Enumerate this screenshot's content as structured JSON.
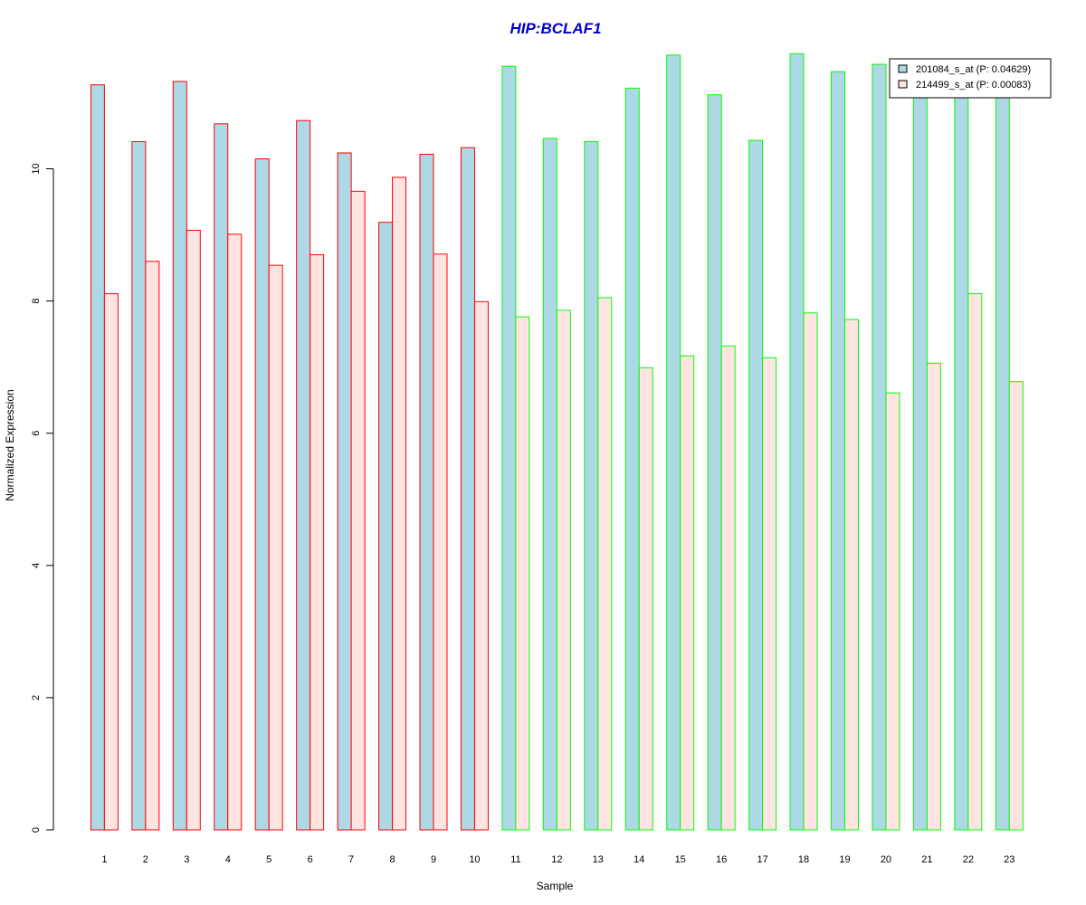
{
  "chart_data": {
    "type": "bar",
    "title": "HIP:BCLAF1",
    "xlabel": "Sample",
    "ylabel": "Normalized Expression",
    "ylim": [
      0,
      12
    ],
    "yticks": [
      "0",
      "2",
      "4",
      "6",
      "8",
      "10"
    ],
    "categories": [
      "1",
      "2",
      "3",
      "4",
      "5",
      "6",
      "7",
      "8",
      "9",
      "10",
      "11",
      "12",
      "13",
      "14",
      "15",
      "16",
      "17",
      "18",
      "19",
      "20",
      "21",
      "22",
      "23"
    ],
    "series": [
      {
        "name": "201084_s_at (P: 0.04629)",
        "fill": "#add8e6",
        "values": [
          11.27,
          10.41,
          11.32,
          10.68,
          10.15,
          10.73,
          10.24,
          9.19,
          10.22,
          10.32,
          11.55,
          10.46,
          10.41,
          11.22,
          11.72,
          11.12,
          10.43,
          11.74,
          11.47,
          11.58,
          11.1,
          11.1,
          11.1
        ]
      },
      {
        "name": "214499_s_at (P: 0.00083)",
        "fill": "#ffe4e1",
        "values": [
          8.11,
          8.6,
          9.07,
          9.01,
          8.54,
          8.7,
          9.66,
          9.87,
          8.71,
          7.99,
          7.76,
          7.86,
          8.05,
          6.99,
          7.17,
          7.32,
          7.14,
          7.82,
          7.72,
          6.61,
          7.06,
          8.11,
          6.78
        ]
      }
    ],
    "group_border_colors": [
      "#ff0000",
      "#ff0000",
      "#ff0000",
      "#ff0000",
      "#ff0000",
      "#ff0000",
      "#ff0000",
      "#ff0000",
      "#ff0000",
      "#ff0000",
      "#00ff00",
      "#00ff00",
      "#00ff00",
      "#00ff00",
      "#00ff00",
      "#00ff00",
      "#00ff00",
      "#00ff00",
      "#00ff00",
      "#00ff00",
      "#00ff00",
      "#00ff00",
      "#00ff00"
    ],
    "title_color": "#0000cc",
    "legend_position": "top-right",
    "grid": false
  }
}
